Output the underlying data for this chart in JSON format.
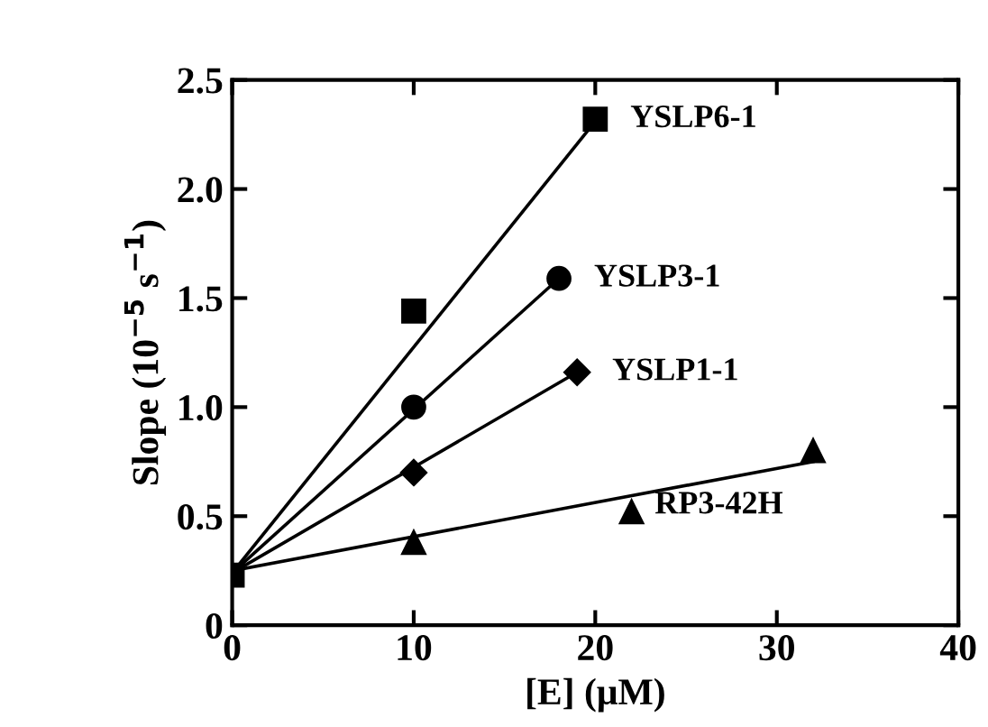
{
  "chart_data": {
    "type": "scatter",
    "xlabel": "[E] (μM)",
    "ylabel": "Slope (10$^{−5}$ s$^{−1}$)",
    "xlim": [
      0,
      40
    ],
    "xticks": [
      0,
      10,
      20,
      30,
      40
    ],
    "ylim": [
      0,
      2.5
    ],
    "yticks": [
      0,
      0.5,
      {
        "value": 1,
        "label": "1.0"
      },
      1.5,
      {
        "value": 2,
        "label": "2.0"
      },
      2.5
    ],
    "grid": false,
    "series": [
      {
        "name": "YSLP6-1",
        "color": "#000000",
        "marker": "square",
        "x": [
          0,
          10,
          20
        ],
        "values": [
          0.23,
          1.44,
          2.32
        ]
      },
      {
        "name": "YSLP3-1",
        "color": "#000000",
        "marker": "circle",
        "x": [
          10,
          18
        ],
        "values": [
          1.0,
          1.59
        ]
      },
      {
        "name": "YSLP1-1",
        "color": "#000000",
        "marker": "diamond",
        "x": [
          10,
          19
        ],
        "values": [
          0.7,
          1.16
        ]
      },
      {
        "name": "RP3-42H",
        "color": "#000000",
        "marker": "triangle",
        "x": [
          10,
          22,
          32
        ],
        "values": [
          0.38,
          0.52,
          0.8
        ]
      },
      {
        "type": "line",
        "color": "#000000",
        "marker": "none",
        "x": [
          0,
          20
        ],
        "values": [
          0.24,
          2.31
        ]
      },
      {
        "type": "line",
        "color": "#000000",
        "marker": "none",
        "x": [
          0,
          18
        ],
        "values": [
          0.24,
          1.59
        ]
      },
      {
        "type": "line",
        "color": "#000000",
        "marker": "none",
        "x": [
          0,
          19
        ],
        "values": [
          0.24,
          1.16
        ]
      },
      {
        "type": "line",
        "color": "#000000",
        "marker": "none",
        "x": [
          0,
          32
        ],
        "values": [
          0.25,
          0.75
        ]
      }
    ]
  }
}
